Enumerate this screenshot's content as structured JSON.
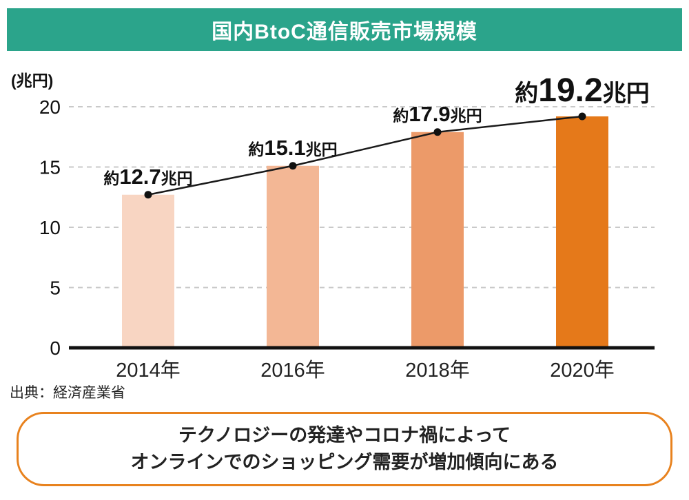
{
  "header": {
    "title": "国内BtoC通信販売市場規模",
    "bg_color": "#2BA48B"
  },
  "chart_data": {
    "type": "bar",
    "title": "国内BtoC通信販売市場規模",
    "unit_label": "(兆円)",
    "categories": [
      "2014年",
      "2016年",
      "2018年",
      "2020年"
    ],
    "values": [
      12.7,
      15.1,
      17.9,
      19.2
    ],
    "value_labels": [
      {
        "prefix": "約",
        "number": "12.7",
        "suffix": "兆円",
        "emphasized": false
      },
      {
        "prefix": "約",
        "number": "15.1",
        "suffix": "兆円",
        "emphasized": false
      },
      {
        "prefix": "約",
        "number": "17.9",
        "suffix": "兆円",
        "emphasized": false
      },
      {
        "prefix": "約",
        "number": "19.2",
        "suffix": "兆円",
        "emphasized": true
      }
    ],
    "bar_colors": [
      "#F8D5C2",
      "#F3B795",
      "#EC9A69",
      "#E5791A"
    ],
    "line_color": "#1a1a1a",
    "marker_color": "#111111",
    "ylim": [
      0,
      20
    ],
    "yticks": [
      0,
      5,
      10,
      15,
      20
    ],
    "grid": true,
    "legend": false,
    "line_overlay": true
  },
  "source": {
    "text": "出典：経済産業省"
  },
  "callout": {
    "line1": "テクノロジーの発達やコロナ禍によって",
    "line2": "オンラインでのショッピング需要が増加傾向にある",
    "border_color": "#E8821E"
  }
}
